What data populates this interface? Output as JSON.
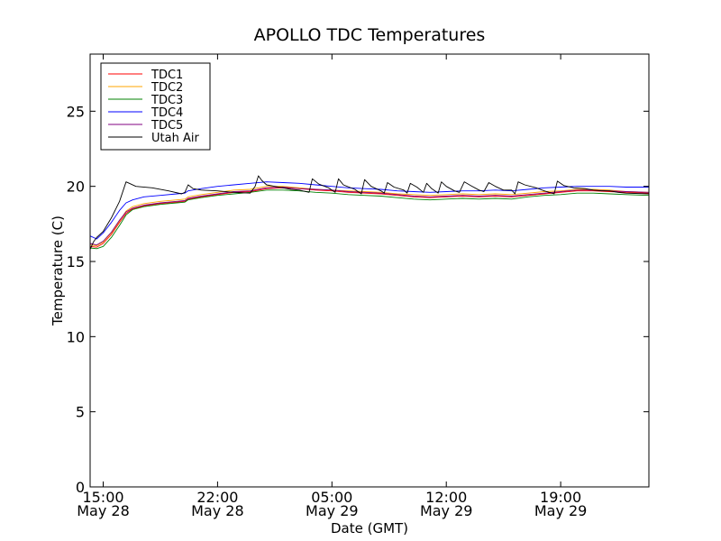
{
  "chart_data": {
    "type": "line",
    "title": "APOLLO TDC Temperatures",
    "xlabel": "Date (GMT)",
    "ylabel": "Temperature (C)",
    "xlim": [
      14.2,
      48.4
    ],
    "ylim": [
      0,
      28.8
    ],
    "grid": false,
    "legend_position": "top-left",
    "y_ticks": [
      {
        "value": 0,
        "label": "0"
      },
      {
        "value": 5,
        "label": "5"
      },
      {
        "value": 10,
        "label": "10"
      },
      {
        "value": 15,
        "label": "15"
      },
      {
        "value": 20,
        "label": "20"
      },
      {
        "value": 25,
        "label": "25"
      }
    ],
    "x_ticks": [
      {
        "value": 15,
        "time": "15:00",
        "date": "May 28"
      },
      {
        "value": 22,
        "time": "22:00",
        "date": "May 28"
      },
      {
        "value": 29,
        "time": "05:00",
        "date": "May 29"
      },
      {
        "value": 36,
        "time": "12:00",
        "date": "May 29"
      },
      {
        "value": 43,
        "time": "19:00",
        "date": "May 29"
      }
    ],
    "series": [
      {
        "name": "TDC1",
        "color": "#ff0000",
        "points": [
          [
            14.2,
            16.0
          ],
          [
            14.6,
            15.95
          ],
          [
            15.0,
            16.2
          ],
          [
            15.5,
            16.8
          ],
          [
            16.0,
            17.6
          ],
          [
            16.4,
            18.2
          ],
          [
            16.8,
            18.5
          ],
          [
            17.5,
            18.7
          ],
          [
            18.5,
            18.85
          ],
          [
            19.5,
            18.95
          ],
          [
            20.0,
            19.0
          ],
          [
            20.2,
            19.15
          ],
          [
            21.0,
            19.3
          ],
          [
            22.0,
            19.45
          ],
          [
            23.0,
            19.6
          ],
          [
            24.0,
            19.65
          ],
          [
            25.0,
            19.85
          ],
          [
            26.0,
            19.9
          ],
          [
            27.0,
            19.85
          ],
          [
            28.0,
            19.75
          ],
          [
            29.0,
            19.7
          ],
          [
            30.0,
            19.6
          ],
          [
            31.0,
            19.55
          ],
          [
            32.0,
            19.5
          ],
          [
            33.0,
            19.4
          ],
          [
            34.0,
            19.3
          ],
          [
            35.0,
            19.25
          ],
          [
            36.0,
            19.3
          ],
          [
            37.0,
            19.35
          ],
          [
            38.0,
            19.3
          ],
          [
            39.0,
            19.35
          ],
          [
            40.0,
            19.3
          ],
          [
            41.0,
            19.4
          ],
          [
            42.0,
            19.5
          ],
          [
            43.0,
            19.6
          ],
          [
            44.0,
            19.7
          ],
          [
            45.0,
            19.7
          ],
          [
            46.0,
            19.65
          ],
          [
            47.0,
            19.6
          ],
          [
            48.4,
            19.55
          ]
        ]
      },
      {
        "name": "TDC2",
        "color": "#ffa500",
        "points": [
          [
            14.2,
            16.1
          ],
          [
            14.6,
            16.05
          ],
          [
            15.0,
            16.3
          ],
          [
            15.5,
            16.9
          ],
          [
            16.0,
            17.7
          ],
          [
            16.4,
            18.35
          ],
          [
            16.8,
            18.65
          ],
          [
            17.5,
            18.85
          ],
          [
            18.5,
            19.0
          ],
          [
            19.5,
            19.1
          ],
          [
            20.0,
            19.15
          ],
          [
            20.2,
            19.3
          ],
          [
            21.0,
            19.45
          ],
          [
            22.0,
            19.6
          ],
          [
            23.0,
            19.75
          ],
          [
            24.0,
            19.8
          ],
          [
            25.0,
            20.0
          ],
          [
            26.0,
            20.0
          ],
          [
            27.0,
            19.9
          ],
          [
            28.0,
            19.8
          ],
          [
            29.0,
            19.75
          ],
          [
            30.0,
            19.7
          ],
          [
            31.0,
            19.65
          ],
          [
            32.0,
            19.6
          ],
          [
            33.0,
            19.5
          ],
          [
            34.0,
            19.45
          ],
          [
            35.0,
            19.4
          ],
          [
            36.0,
            19.45
          ],
          [
            37.0,
            19.5
          ],
          [
            38.0,
            19.45
          ],
          [
            39.0,
            19.5
          ],
          [
            40.0,
            19.45
          ],
          [
            41.0,
            19.55
          ],
          [
            42.0,
            19.65
          ],
          [
            43.0,
            19.7
          ],
          [
            44.0,
            19.8
          ],
          [
            45.0,
            19.8
          ],
          [
            46.0,
            19.75
          ],
          [
            47.0,
            19.65
          ],
          [
            48.4,
            19.6
          ]
        ]
      },
      {
        "name": "TDC3",
        "color": "#008000",
        "points": [
          [
            14.2,
            15.9
          ],
          [
            14.6,
            15.85
          ],
          [
            15.0,
            16.0
          ],
          [
            15.5,
            16.6
          ],
          [
            16.0,
            17.4
          ],
          [
            16.4,
            18.1
          ],
          [
            16.8,
            18.45
          ],
          [
            17.5,
            18.65
          ],
          [
            18.5,
            18.8
          ],
          [
            19.5,
            18.9
          ],
          [
            20.0,
            18.95
          ],
          [
            20.2,
            19.1
          ],
          [
            21.0,
            19.25
          ],
          [
            22.0,
            19.4
          ],
          [
            23.0,
            19.5
          ],
          [
            24.0,
            19.6
          ],
          [
            25.0,
            19.75
          ],
          [
            26.0,
            19.75
          ],
          [
            27.0,
            19.7
          ],
          [
            28.0,
            19.6
          ],
          [
            29.0,
            19.55
          ],
          [
            30.0,
            19.45
          ],
          [
            31.0,
            19.4
          ],
          [
            32.0,
            19.35
          ],
          [
            33.0,
            19.25
          ],
          [
            34.0,
            19.15
          ],
          [
            35.0,
            19.1
          ],
          [
            36.0,
            19.15
          ],
          [
            37.0,
            19.2
          ],
          [
            38.0,
            19.15
          ],
          [
            39.0,
            19.2
          ],
          [
            40.0,
            19.15
          ],
          [
            41.0,
            19.3
          ],
          [
            42.0,
            19.4
          ],
          [
            43.0,
            19.45
          ],
          [
            44.0,
            19.55
          ],
          [
            45.0,
            19.55
          ],
          [
            46.0,
            19.5
          ],
          [
            47.0,
            19.45
          ],
          [
            48.4,
            19.4
          ]
        ]
      },
      {
        "name": "TDC4",
        "color": "#0000ff",
        "points": [
          [
            14.2,
            16.7
          ],
          [
            14.6,
            16.5
          ],
          [
            15.0,
            16.9
          ],
          [
            15.5,
            17.6
          ],
          [
            16.0,
            18.4
          ],
          [
            16.4,
            18.9
          ],
          [
            16.8,
            19.1
          ],
          [
            17.5,
            19.3
          ],
          [
            18.5,
            19.4
          ],
          [
            19.5,
            19.5
          ],
          [
            20.0,
            19.55
          ],
          [
            20.2,
            19.7
          ],
          [
            21.0,
            19.85
          ],
          [
            22.0,
            20.0
          ],
          [
            23.0,
            20.1
          ],
          [
            24.0,
            20.2
          ],
          [
            25.0,
            20.3
          ],
          [
            26.0,
            20.25
          ],
          [
            27.0,
            20.2
          ],
          [
            28.0,
            20.1
          ],
          [
            29.0,
            20.0
          ],
          [
            30.0,
            19.9
          ],
          [
            31.0,
            19.85
          ],
          [
            32.0,
            19.8
          ],
          [
            33.0,
            19.7
          ],
          [
            34.0,
            19.65
          ],
          [
            35.0,
            19.6
          ],
          [
            36.0,
            19.65
          ],
          [
            37.0,
            19.7
          ],
          [
            38.0,
            19.7
          ],
          [
            39.0,
            19.75
          ],
          [
            40.0,
            19.7
          ],
          [
            41.0,
            19.8
          ],
          [
            42.0,
            19.9
          ],
          [
            43.0,
            19.95
          ],
          [
            44.0,
            20.0
          ],
          [
            45.0,
            20.0
          ],
          [
            46.0,
            20.0
          ],
          [
            47.0,
            19.95
          ],
          [
            48.4,
            19.95
          ]
        ]
      },
      {
        "name": "TDC5",
        "color": "#800080",
        "points": [
          [
            14.2,
            16.2
          ],
          [
            14.6,
            16.1
          ],
          [
            15.0,
            16.35
          ],
          [
            15.5,
            16.95
          ],
          [
            16.0,
            17.75
          ],
          [
            16.4,
            18.3
          ],
          [
            16.8,
            18.55
          ],
          [
            17.5,
            18.75
          ],
          [
            18.5,
            18.9
          ],
          [
            19.5,
            19.0
          ],
          [
            20.0,
            19.05
          ],
          [
            20.2,
            19.2
          ],
          [
            21.0,
            19.35
          ],
          [
            22.0,
            19.5
          ],
          [
            23.0,
            19.65
          ],
          [
            24.0,
            19.7
          ],
          [
            25.0,
            19.9
          ],
          [
            26.0,
            19.95
          ],
          [
            27.0,
            19.85
          ],
          [
            28.0,
            19.8
          ],
          [
            29.0,
            19.75
          ],
          [
            30.0,
            19.65
          ],
          [
            31.0,
            19.6
          ],
          [
            32.0,
            19.55
          ],
          [
            33.0,
            19.45
          ],
          [
            34.0,
            19.35
          ],
          [
            35.0,
            19.3
          ],
          [
            36.0,
            19.35
          ],
          [
            37.0,
            19.4
          ],
          [
            38.0,
            19.35
          ],
          [
            39.0,
            19.4
          ],
          [
            40.0,
            19.35
          ],
          [
            41.0,
            19.45
          ],
          [
            42.0,
            19.55
          ],
          [
            43.0,
            19.65
          ],
          [
            44.0,
            19.75
          ],
          [
            45.0,
            19.75
          ],
          [
            46.0,
            19.7
          ],
          [
            47.0,
            19.65
          ],
          [
            48.4,
            19.6
          ]
        ]
      },
      {
        "name": "Utah Air",
        "color": "#000000",
        "points": [
          [
            14.2,
            15.8
          ],
          [
            14.4,
            16.3
          ],
          [
            14.6,
            16.6
          ],
          [
            15.0,
            17.0
          ],
          [
            15.5,
            17.9
          ],
          [
            16.0,
            19.0
          ],
          [
            16.4,
            20.3
          ],
          [
            16.6,
            20.2
          ],
          [
            17.0,
            20.0
          ],
          [
            18.0,
            19.9
          ],
          [
            19.0,
            19.7
          ],
          [
            19.8,
            19.5
          ],
          [
            20.0,
            19.6
          ],
          [
            20.2,
            20.1
          ],
          [
            20.5,
            19.85
          ],
          [
            21.0,
            19.75
          ],
          [
            22.0,
            19.7
          ],
          [
            23.0,
            19.6
          ],
          [
            24.0,
            19.55
          ],
          [
            24.3,
            20.0
          ],
          [
            24.5,
            20.7
          ],
          [
            24.7,
            20.4
          ],
          [
            25.0,
            20.1
          ],
          [
            25.5,
            20.0
          ],
          [
            26.0,
            19.9
          ],
          [
            26.5,
            19.8
          ],
          [
            27.0,
            19.75
          ],
          [
            27.6,
            19.6
          ],
          [
            27.8,
            20.5
          ],
          [
            28.2,
            20.15
          ],
          [
            28.8,
            19.9
          ],
          [
            29.2,
            19.6
          ],
          [
            29.4,
            20.5
          ],
          [
            29.7,
            20.1
          ],
          [
            30.4,
            19.8
          ],
          [
            30.8,
            19.5
          ],
          [
            31.0,
            20.45
          ],
          [
            31.4,
            20.0
          ],
          [
            32.0,
            19.7
          ],
          [
            32.2,
            19.55
          ],
          [
            32.4,
            20.25
          ],
          [
            32.8,
            19.95
          ],
          [
            33.4,
            19.75
          ],
          [
            33.6,
            19.55
          ],
          [
            33.8,
            20.2
          ],
          [
            34.2,
            19.95
          ],
          [
            34.6,
            19.6
          ],
          [
            34.8,
            20.2
          ],
          [
            35.1,
            19.85
          ],
          [
            35.5,
            19.55
          ],
          [
            35.7,
            20.3
          ],
          [
            36.0,
            20.0
          ],
          [
            36.5,
            19.7
          ],
          [
            36.8,
            19.6
          ],
          [
            37.1,
            20.3
          ],
          [
            37.5,
            20.05
          ],
          [
            38.0,
            19.75
          ],
          [
            38.3,
            19.65
          ],
          [
            38.6,
            20.25
          ],
          [
            39.0,
            20.0
          ],
          [
            39.5,
            19.75
          ],
          [
            40.0,
            19.75
          ],
          [
            40.2,
            19.5
          ],
          [
            40.4,
            20.3
          ],
          [
            40.8,
            20.1
          ],
          [
            41.5,
            19.9
          ],
          [
            42.0,
            19.7
          ],
          [
            42.6,
            19.5
          ],
          [
            42.8,
            20.35
          ],
          [
            43.2,
            20.05
          ],
          [
            43.8,
            19.9
          ],
          [
            44.5,
            19.85
          ],
          [
            45.0,
            19.75
          ],
          [
            45.5,
            19.7
          ],
          [
            46.0,
            19.7
          ],
          [
            46.5,
            19.6
          ],
          [
            47.0,
            19.55
          ],
          [
            48.4,
            19.5
          ]
        ]
      }
    ]
  }
}
